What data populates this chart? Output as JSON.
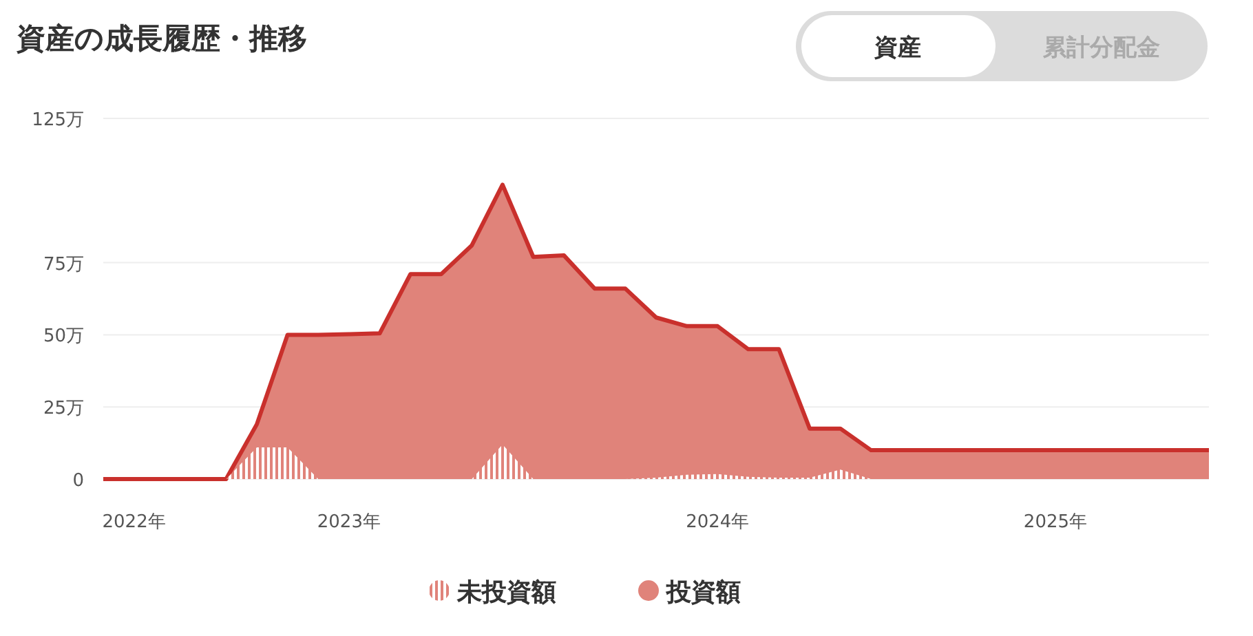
{
  "chart_data": {
    "type": "area",
    "title": "資産の成長履歴・推移",
    "annotations": [
      "資産",
      "累計分配金"
    ],
    "categories": [
      null,
      "2022年",
      null,
      null,
      null,
      null,
      null,
      null,
      "2023年",
      null,
      null,
      null,
      null,
      null,
      null,
      null,
      null,
      null,
      null,
      null,
      "2024年",
      null,
      null,
      null,
      null,
      null,
      null,
      null,
      null,
      null,
      null,
      "2025年",
      null,
      null,
      null,
      null,
      null
    ],
    "series": [
      {
        "name": "未投資額",
        "color": "#e0837a",
        "values": [
          0,
          0,
          0,
          0,
          0,
          11,
          11,
          0,
          0,
          0,
          0,
          0,
          0,
          12,
          0,
          0,
          0,
          0,
          0.5,
          1.5,
          1.7,
          0.8,
          0.5,
          0.5,
          3.3,
          0,
          0,
          0,
          0,
          0,
          0,
          0,
          0,
          0,
          0,
          0,
          0
        ]
      },
      {
        "name": "投資額",
        "color": "#e0837a",
        "values": [
          0,
          0,
          0,
          0,
          0,
          19,
          50,
          50,
          50.2,
          50.5,
          71,
          71,
          81,
          102,
          77,
          77.5,
          66,
          66,
          56,
          53,
          53,
          45,
          45,
          17.5,
          17.5,
          10,
          10,
          10,
          10,
          10,
          10,
          10,
          10,
          10,
          10,
          10,
          10
        ]
      }
    ],
    "ylim": [
      0,
      125
    ],
    "yticks": [
      0,
      {
        "value": 25,
        "label": "25万"
      },
      {
        "value": 50,
        "label": "50万"
      },
      {
        "value": 75,
        "label": "75万"
      },
      {
        "value": 125,
        "label": "125万"
      }
    ],
    "grid": "y",
    "legend": "bottom"
  }
}
